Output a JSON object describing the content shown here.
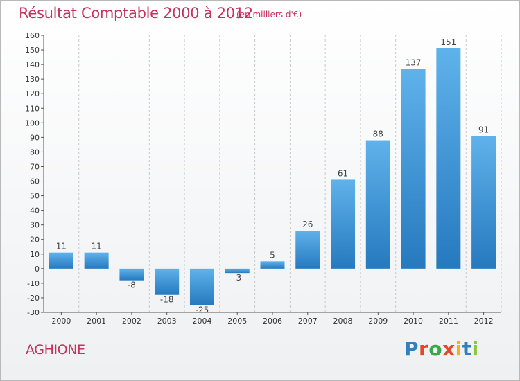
{
  "header": {
    "title": "Résultat Comptable 2000 à 2012",
    "subtitle": "(en milliers d'€)"
  },
  "footer": {
    "commune": "AGHIONE",
    "logo_text": "Proxiti",
    "logo_colors": [
      "#2f7fc1",
      "#e04a2a",
      "#3aa84a",
      "#e04a2a",
      "#f2b21d",
      "#2f7fc1",
      "#8cc63f"
    ]
  },
  "colors": {
    "bar_top": "#5fb2ea",
    "bar_bottom": "#2679be",
    "grid": "#c8c8c8",
    "title": "#c4325a"
  },
  "chart_data": {
    "type": "bar",
    "title": "Résultat Comptable 2000 à 2012",
    "subtitle": "(en milliers d'€)",
    "categories": [
      "2000",
      "2001",
      "2002",
      "2003",
      "2004",
      "2005",
      "2006",
      "2007",
      "2008",
      "2009",
      "2010",
      "2011",
      "2012"
    ],
    "values": [
      11,
      11,
      -8,
      -18,
      -25,
      -3,
      5,
      26,
      61,
      88,
      137,
      151,
      91
    ],
    "data_labels": [
      "11",
      "11",
      "-8",
      "-18",
      "-25",
      "-3",
      "5",
      "26",
      "61",
      "88",
      "137",
      "151",
      "91"
    ],
    "yticks": [
      -30,
      -20,
      -10,
      0,
      10,
      20,
      30,
      40,
      50,
      60,
      70,
      80,
      90,
      100,
      110,
      120,
      130,
      140,
      150,
      160
    ],
    "ylim": [
      -30,
      160
    ],
    "xlabel": "",
    "ylabel": "",
    "grid": "vertical-dashed",
    "legend": "none"
  }
}
